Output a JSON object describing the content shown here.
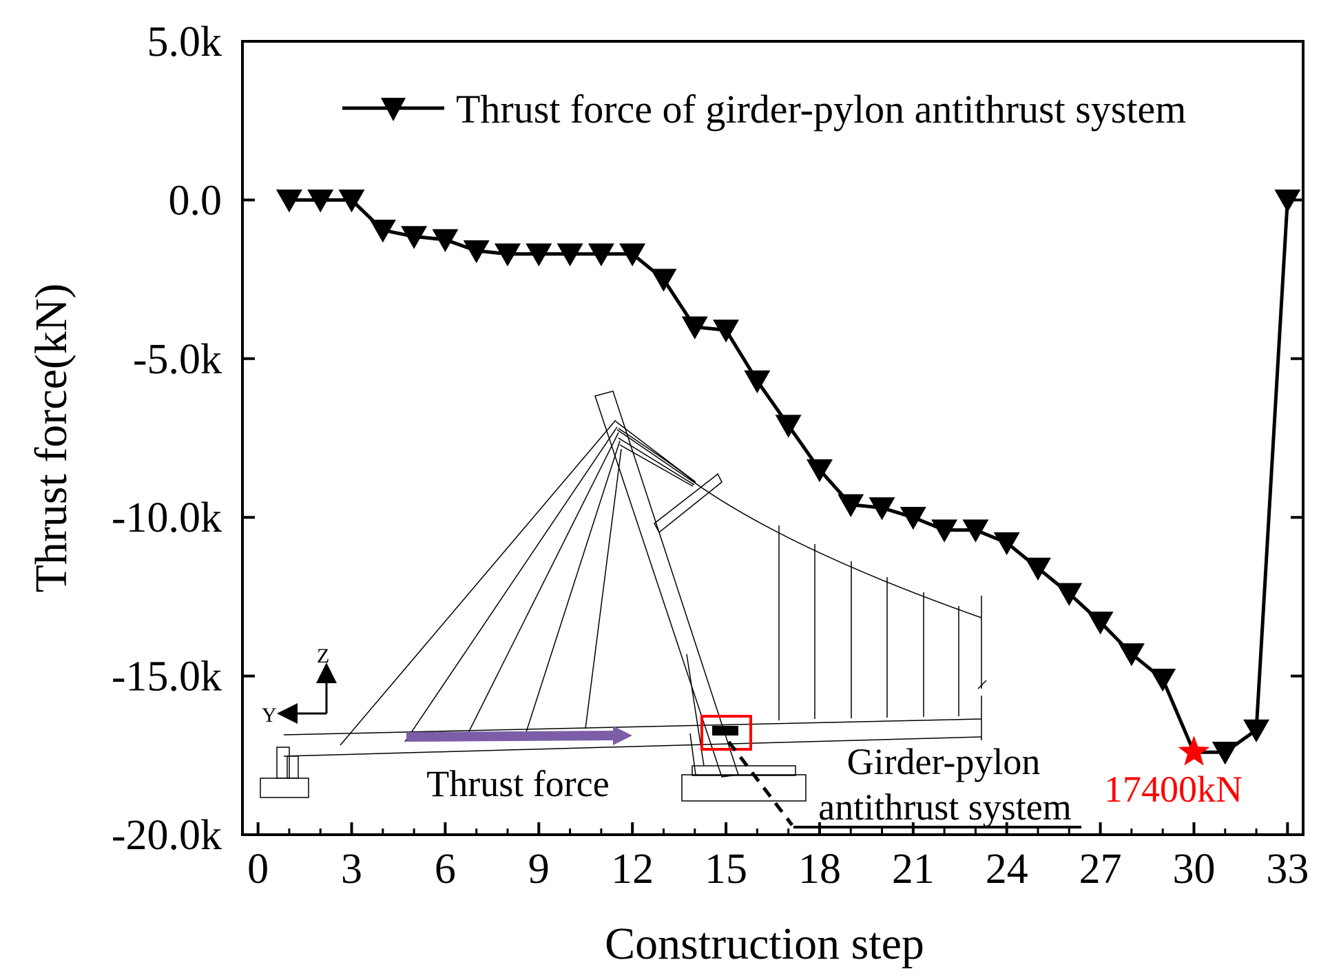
{
  "chart_data": {
    "type": "line",
    "title": "",
    "xlabel": "Construction step",
    "ylabel": "Thrust force(kN)",
    "xlim": [
      -0.5,
      33.5
    ],
    "ylim": [
      -20000,
      5000
    ],
    "x_ticks": [
      0,
      3,
      6,
      9,
      12,
      15,
      18,
      21,
      24,
      27,
      30,
      33
    ],
    "x_tick_labels": [
      "0",
      "3",
      "6",
      "9",
      "12",
      "15",
      "18",
      "21",
      "24",
      "27",
      "30",
      "33"
    ],
    "y_ticks": [
      5000,
      0,
      -5000,
      -10000,
      -15000,
      -20000
    ],
    "y_tick_labels": [
      "5.0k",
      "0.0",
      "-5.0k",
      "-10.0k",
      "-15.0k",
      "-20.0k"
    ],
    "legend_position": "top-right",
    "series": [
      {
        "name": "Thrust force of girder-pylon antithrust system",
        "marker": "triangle-down",
        "color": "#000000",
        "x": [
          1,
          2,
          3,
          4,
          5,
          6,
          7,
          8,
          9,
          10,
          11,
          12,
          13,
          14,
          15,
          16,
          17,
          18,
          19,
          20,
          21,
          22,
          23,
          24,
          25,
          26,
          27,
          28,
          29,
          30,
          31,
          32,
          33
        ],
        "values": [
          0,
          0,
          0,
          -950,
          -1150,
          -1250,
          -1600,
          -1700,
          -1700,
          -1700,
          -1700,
          -1700,
          -2500,
          -4000,
          -4100,
          -5700,
          -7100,
          -8500,
          -9600,
          -9700,
          -10000,
          -10400,
          -10400,
          -10800,
          -11600,
          -12400,
          -13300,
          -14300,
          -15100,
          -17400,
          -17400,
          -16700,
          0
        ]
      }
    ],
    "annotations": {
      "peak_label": "17400kN",
      "peak_color": "#ff0000",
      "peak_x": 30,
      "peak_y": -17400,
      "thrust_force_label": "Thrust force",
      "thrust_arrow_color": "#7b5ea7",
      "system_label_line1": "Girder-pylon",
      "system_label_line2": "antithrust system",
      "axis_y_label": "Y",
      "axis_z_label": "Z"
    }
  }
}
